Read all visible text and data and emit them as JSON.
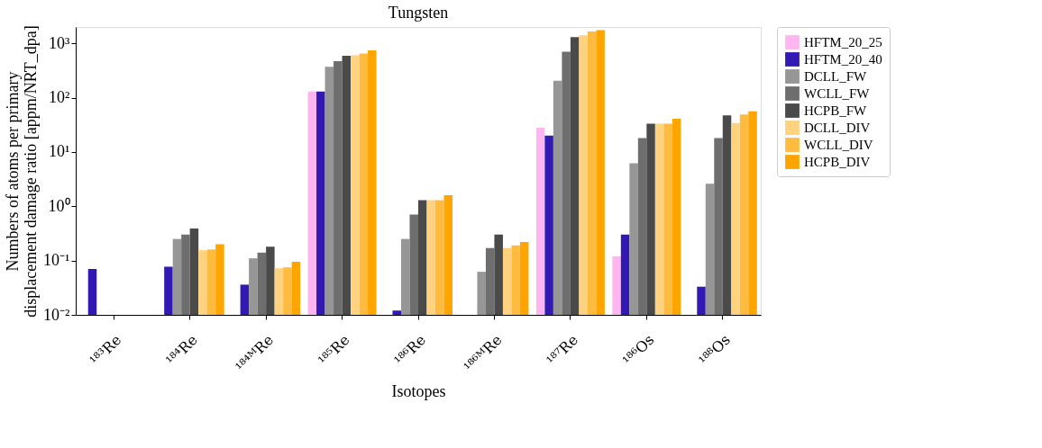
{
  "chart_data": {
    "type": "bar",
    "title": "Tungsten",
    "xlabel": "Isotopes",
    "ylabel": "Numbers of atoms per primary\ndisplacement damage ratio [appm/NRT_dpa]",
    "categories": [
      "¹⁸³Re",
      "¹⁸⁴Re",
      "¹⁸⁴ᴹRe",
      "¹⁸⁵Re",
      "¹⁸⁶Re",
      "¹⁸⁶ᴹRe",
      "¹⁸⁷Re",
      "¹⁸⁶Os",
      "¹⁸⁸Os"
    ],
    "log": "y",
    "ylim": [
      0.01,
      2000
    ],
    "yticks": [
      {
        "value": 0.01,
        "label": "10⁻²"
      },
      {
        "value": 0.1,
        "label": "10⁻¹"
      },
      {
        "value": 1,
        "label": "10⁰"
      },
      {
        "value": 10,
        "label": "10¹"
      },
      {
        "value": 100,
        "label": "10²"
      },
      {
        "value": 1000,
        "label": "10³"
      }
    ],
    "grid": false,
    "legend": "right",
    "series": [
      {
        "name": "HFTM_20_25",
        "color": "#ffb6f0",
        "values": [
          null,
          null,
          null,
          130,
          null,
          null,
          28,
          0.12,
          null
        ]
      },
      {
        "name": "HFTM_20_40",
        "color": "#3319b4",
        "values": [
          0.07,
          0.077,
          0.036,
          130,
          0.012,
          null,
          20,
          0.3,
          0.033
        ]
      },
      {
        "name": "DCLL_FW",
        "color": "#969696",
        "values": [
          null,
          0.25,
          0.11,
          370,
          0.25,
          0.062,
          205,
          6.2,
          2.6
        ]
      },
      {
        "name": "WCLL_FW",
        "color": "#6e6e6e",
        "values": [
          null,
          0.3,
          0.14,
          470,
          0.7,
          0.17,
          700,
          18,
          18
        ]
      },
      {
        "name": "HCPB_FW",
        "color": "#4a4a4a",
        "values": [
          null,
          0.39,
          0.18,
          590,
          1.3,
          0.3,
          1300,
          33,
          47
        ]
      },
      {
        "name": "DCLL_DIV",
        "color": "#ffd27f",
        "values": [
          null,
          0.155,
          0.072,
          600,
          1.3,
          0.17,
          1400,
          33,
          34
        ]
      },
      {
        "name": "WCLL_DIV",
        "color": "#ffbb40",
        "values": [
          null,
          0.16,
          0.075,
          650,
          1.3,
          0.19,
          1650,
          33,
          49
        ]
      },
      {
        "name": "HCPB_DIV",
        "color": "#ffa500",
        "values": [
          null,
          0.2,
          0.095,
          740,
          1.6,
          0.22,
          1750,
          41,
          56
        ]
      }
    ]
  }
}
